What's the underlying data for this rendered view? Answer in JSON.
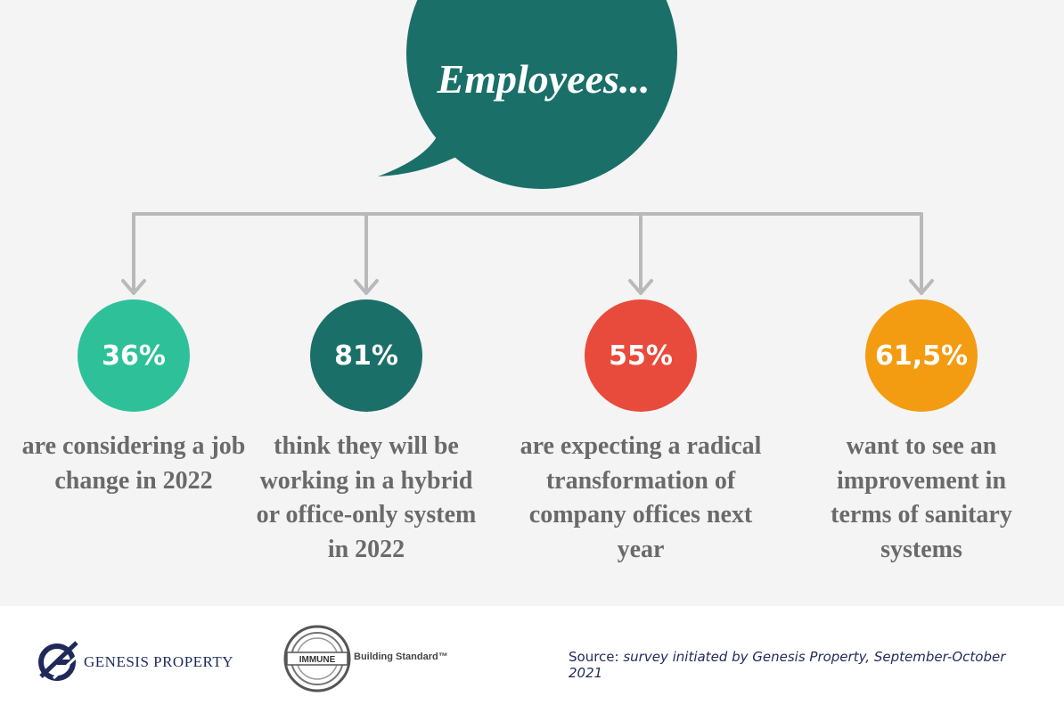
{
  "header": {
    "title": "Employees..."
  },
  "stats": [
    {
      "value": "36%",
      "description": "are considering a job change in 2022",
      "color": "#2ec199"
    },
    {
      "value": "81%",
      "description": "think they will be working in a hybrid or office-only system in 2022",
      "color": "#1b6f69"
    },
    {
      "value": "55%",
      "description": "are expecting a radical transformation of company offices next year",
      "color": "#e84b3c"
    },
    {
      "value": "61,5%",
      "description": "want to see an improvement in terms of sanitary systems",
      "color": "#f39c12"
    }
  ],
  "footer": {
    "genesis_label": "GENESIS PROPERTY",
    "immune_badge": "IMMUNE",
    "immune_label": "Building Standard™",
    "source_label": "Source:",
    "source_value": "survey initiated by Genesis Property, September-October 2021"
  },
  "colors": {
    "bubble": "#1b6f69",
    "connector": "#b9b9b9",
    "text": "#6a6a6a",
    "brand": "#1f2a5a"
  }
}
